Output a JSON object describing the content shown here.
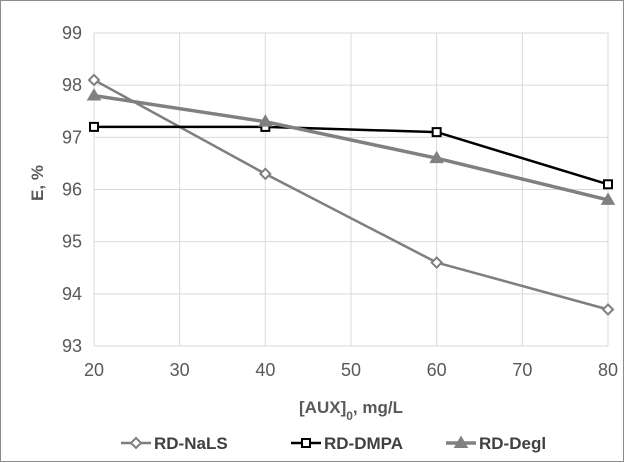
{
  "chart_data": {
    "type": "line",
    "title": "",
    "xlabel_main": "[AUX]",
    "xlabel_sub": "0",
    "xlabel_unit": ", mg/L",
    "ylabel": "E, %",
    "xlim": [
      20,
      80
    ],
    "ylim": [
      93,
      99
    ],
    "xticks": [
      20,
      30,
      40,
      50,
      60,
      70,
      80
    ],
    "yticks": [
      93,
      94,
      95,
      96,
      97,
      98,
      99
    ],
    "grid": true,
    "legend_position": "bottom",
    "series": [
      {
        "name": "RD-NaLS",
        "marker": "diamond",
        "color": "#7f7f7f",
        "line_width": 2.5,
        "x": [
          20,
          40,
          60,
          80
        ],
        "y": [
          98.1,
          96.3,
          94.6,
          93.7
        ]
      },
      {
        "name": "RD-DMPA",
        "marker": "square",
        "color": "#000000",
        "line_width": 2.5,
        "x": [
          20,
          40,
          60,
          80
        ],
        "y": [
          97.2,
          97.2,
          97.1,
          96.1
        ]
      },
      {
        "name": "RD-Degl",
        "marker": "triangle",
        "color": "#808080",
        "line_width": 3.5,
        "x": [
          20,
          40,
          60,
          80
        ],
        "y": [
          97.8,
          97.3,
          96.6,
          95.8
        ]
      }
    ]
  }
}
